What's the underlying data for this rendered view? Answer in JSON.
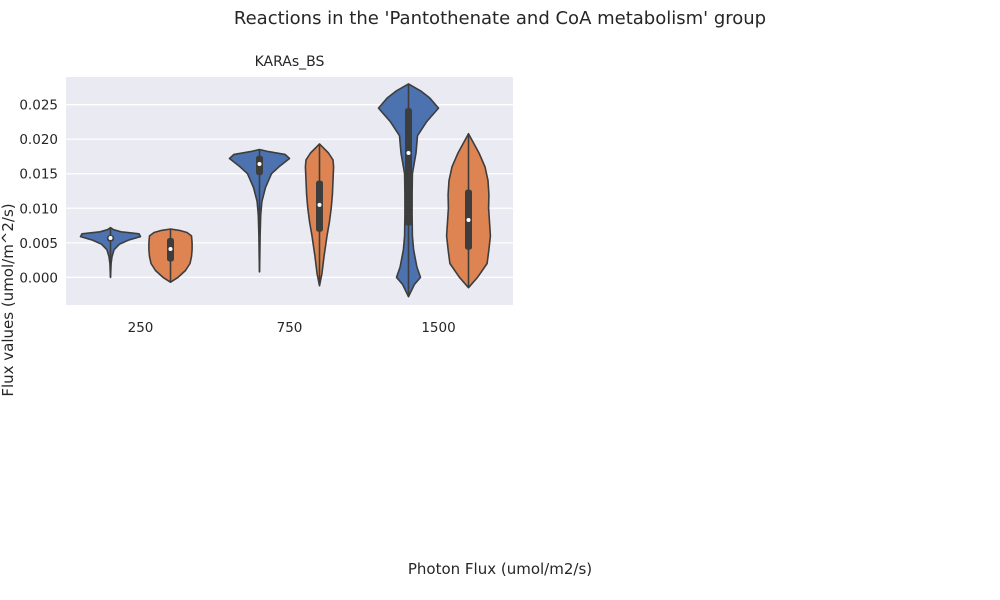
{
  "figure": {
    "suptitle": "Reactions in the 'Pantothenate and CoA metabolism' group",
    "xlabel": "Photon Flux (umol/m2/s)",
    "ylabel": "Flux values (umol/m^2/s)"
  },
  "colors": {
    "background": "#eaeaf2",
    "grid": "#ffffff",
    "series_1": "#4c72b0",
    "series_2": "#dd8452",
    "outline": "#3d3d3d",
    "inner_box": "#3d3d3d"
  },
  "chart_data": {
    "type": "violin",
    "title": "KARAs_BS",
    "xlabel": "Photon Flux (umol/m2/s)",
    "ylabel": "Flux values (umol/m^2/s)",
    "categories": [
      "250",
      "750",
      "1500"
    ],
    "ylim": [
      -0.004,
      0.029
    ],
    "yticks": [
      0.0,
      0.005,
      0.01,
      0.015,
      0.02,
      0.025
    ],
    "ytick_labels": [
      "0.000",
      "0.005",
      "0.010",
      "0.015",
      "0.020",
      "0.025"
    ],
    "grid": true,
    "legend": "none",
    "series": [
      {
        "violins": [
          {
            "category": "250",
            "min": 0.0,
            "max": 0.0072,
            "q1": 0.0052,
            "median": 0.0057,
            "q3": 0.0061,
            "profile": [
              [
                0.0,
                0.0
              ],
              [
                0.001,
                0.01
              ],
              [
                0.002,
                0.02
              ],
              [
                0.003,
                0.05
              ],
              [
                0.004,
                0.12
              ],
              [
                0.0048,
                0.3
              ],
              [
                0.0054,
                0.6
              ],
              [
                0.0059,
                1.0
              ],
              [
                0.0063,
                0.95
              ],
              [
                0.0066,
                0.35
              ],
              [
                0.0069,
                0.1
              ],
              [
                0.0072,
                0.0
              ]
            ]
          },
          {
            "category": "750",
            "min": 0.0008,
            "max": 0.0185,
            "q1": 0.0148,
            "median": 0.0164,
            "q3": 0.0176,
            "profile": [
              [
                0.0008,
                0.0
              ],
              [
                0.003,
                0.01
              ],
              [
                0.006,
                0.02
              ],
              [
                0.009,
                0.04
              ],
              [
                0.011,
                0.08
              ],
              [
                0.013,
                0.2
              ],
              [
                0.015,
                0.4
              ],
              [
                0.016,
                0.65
              ],
              [
                0.0172,
                1.0
              ],
              [
                0.0178,
                0.85
              ],
              [
                0.0182,
                0.3
              ],
              [
                0.0185,
                0.0
              ]
            ]
          },
          {
            "category": "1500",
            "min": -0.0028,
            "max": 0.028,
            "q1": 0.0075,
            "median": 0.018,
            "q3": 0.0245,
            "profile": [
              [
                -0.0028,
                0.0
              ],
              [
                -0.001,
                0.2
              ],
              [
                0.0,
                0.4
              ],
              [
                0.0015,
                0.28
              ],
              [
                0.004,
                0.17
              ],
              [
                0.006,
                0.13
              ],
              [
                0.009,
                0.12
              ],
              [
                0.012,
                0.12
              ],
              [
                0.015,
                0.13
              ],
              [
                0.018,
                0.25
              ],
              [
                0.0205,
                0.3
              ],
              [
                0.0225,
                0.6
              ],
              [
                0.0245,
                1.0
              ],
              [
                0.026,
                0.7
              ],
              [
                0.027,
                0.4
              ],
              [
                0.028,
                0.0
              ]
            ]
          }
        ]
      },
      {
        "violins": [
          {
            "category": "250",
            "min": -0.0007,
            "max": 0.007,
            "q1": 0.0023,
            "median": 0.0041,
            "q3": 0.0057,
            "profile": [
              [
                -0.0007,
                0.0
              ],
              [
                0.0,
                0.25
              ],
              [
                0.001,
                0.5
              ],
              [
                0.002,
                0.65
              ],
              [
                0.003,
                0.7
              ],
              [
                0.004,
                0.72
              ],
              [
                0.005,
                0.72
              ],
              [
                0.006,
                0.7
              ],
              [
                0.0065,
                0.55
              ],
              [
                0.0068,
                0.3
              ],
              [
                0.007,
                0.0
              ]
            ]
          },
          {
            "category": "750",
            "min": -0.0012,
            "max": 0.0193,
            "q1": 0.0066,
            "median": 0.0105,
            "q3": 0.014,
            "profile": [
              [
                -0.0012,
                0.0
              ],
              [
                0.0005,
                0.08
              ],
              [
                0.003,
                0.15
              ],
              [
                0.006,
                0.25
              ],
              [
                0.008,
                0.33
              ],
              [
                0.01,
                0.39
              ],
              [
                0.012,
                0.43
              ],
              [
                0.014,
                0.45
              ],
              [
                0.016,
                0.47
              ],
              [
                0.017,
                0.45
              ],
              [
                0.018,
                0.3
              ],
              [
                0.019,
                0.07
              ],
              [
                0.0193,
                0.0
              ]
            ]
          },
          {
            "category": "1500",
            "min": -0.0015,
            "max": 0.0208,
            "q1": 0.004,
            "median": 0.0083,
            "q3": 0.0127,
            "profile": [
              [
                -0.0015,
                0.0
              ],
              [
                0.0,
                0.3
              ],
              [
                0.002,
                0.62
              ],
              [
                0.004,
                0.68
              ],
              [
                0.006,
                0.73
              ],
              [
                0.008,
                0.7
              ],
              [
                0.01,
                0.67
              ],
              [
                0.012,
                0.68
              ],
              [
                0.014,
                0.65
              ],
              [
                0.016,
                0.55
              ],
              [
                0.018,
                0.35
              ],
              [
                0.02,
                0.1
              ],
              [
                0.0208,
                0.0
              ]
            ]
          }
        ]
      }
    ]
  }
}
